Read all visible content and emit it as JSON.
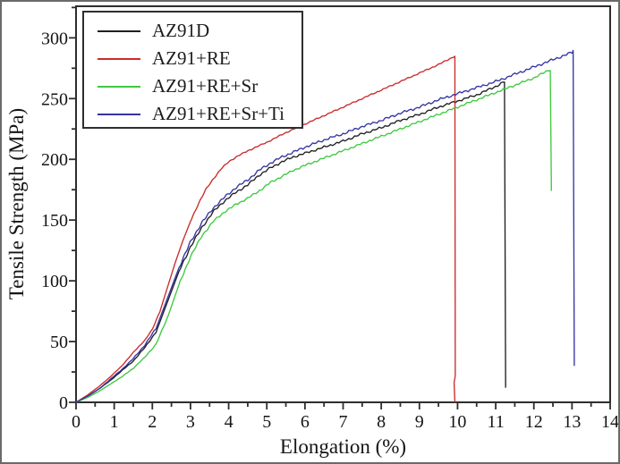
{
  "chart_data": {
    "type": "line",
    "title": "",
    "xlabel": "Elongation (%)",
    "ylabel": "Tensile Strength (MPa)",
    "xlim": [
      0,
      14
    ],
    "ylim": [
      0,
      326
    ],
    "x_ticks": [
      0,
      1,
      2,
      3,
      4,
      5,
      6,
      7,
      8,
      9,
      10,
      11,
      12,
      13,
      14
    ],
    "y_ticks": [
      0,
      50,
      100,
      150,
      200,
      250,
      300
    ],
    "x_minor_step": 0.5,
    "y_minor_step": 25,
    "grid": false,
    "legend_position": "top-left",
    "axis_color": "#2e2e2e",
    "series": [
      {
        "name": "AZ91D",
        "color": "#1f1f1f",
        "jitter": 1.0,
        "points": [
          [
            0,
            0
          ],
          [
            0.3,
            5
          ],
          [
            0.6,
            11
          ],
          [
            0.9,
            18
          ],
          [
            1.2,
            26
          ],
          [
            1.5,
            34
          ],
          [
            1.8,
            45
          ],
          [
            2.1,
            58
          ],
          [
            2.4,
            83
          ],
          [
            2.7,
            108
          ],
          [
            3.0,
            128
          ],
          [
            3.3,
            144
          ],
          [
            3.6,
            157
          ],
          [
            3.9,
            166
          ],
          [
            4.2,
            173
          ],
          [
            4.5,
            179
          ],
          [
            4.8,
            187
          ],
          [
            5.1,
            193
          ],
          [
            5.4,
            198
          ],
          [
            5.7,
            202
          ],
          [
            6.0,
            205
          ],
          [
            6.5,
            210
          ],
          [
            7.0,
            215
          ],
          [
            7.5,
            221
          ],
          [
            8.0,
            226
          ],
          [
            8.5,
            232
          ],
          [
            9.0,
            237
          ],
          [
            9.5,
            243
          ],
          [
            10.0,
            248
          ],
          [
            10.5,
            253
          ],
          [
            11.0,
            260
          ],
          [
            11.23,
            264
          ],
          [
            11.26,
            12
          ]
        ]
      },
      {
        "name": "AZ91+RE",
        "color": "#cb2b2b",
        "jitter": 0.55,
        "points": [
          [
            0,
            0
          ],
          [
            0.3,
            6
          ],
          [
            0.6,
            13
          ],
          [
            0.9,
            21
          ],
          [
            1.2,
            30
          ],
          [
            1.5,
            41
          ],
          [
            1.8,
            51
          ],
          [
            2.0,
            60
          ],
          [
            2.2,
            75
          ],
          [
            2.4,
            95
          ],
          [
            2.6,
            115
          ],
          [
            2.8,
            133
          ],
          [
            3.0,
            149
          ],
          [
            3.2,
            163
          ],
          [
            3.4,
            175
          ],
          [
            3.6,
            184
          ],
          [
            3.8,
            192
          ],
          [
            4.0,
            198
          ],
          [
            4.2,
            202
          ],
          [
            4.5,
            207
          ],
          [
            5.0,
            214
          ],
          [
            5.5,
            222
          ],
          [
            6.0,
            229
          ],
          [
            6.5,
            236
          ],
          [
            7.0,
            243
          ],
          [
            7.5,
            250
          ],
          [
            8.0,
            257
          ],
          [
            8.5,
            264
          ],
          [
            9.0,
            271
          ],
          [
            9.5,
            278
          ],
          [
            9.93,
            285
          ],
          [
            9.94,
            22
          ],
          [
            9.91,
            16
          ],
          [
            9.93,
            0
          ]
        ]
      },
      {
        "name": "AZ91+RE+Sr",
        "color": "#3fc93f",
        "jitter": 0.9,
        "points": [
          [
            0,
            0
          ],
          [
            0.3,
            4
          ],
          [
            0.6,
            9
          ],
          [
            0.9,
            15
          ],
          [
            1.2,
            21
          ],
          [
            1.5,
            28
          ],
          [
            1.8,
            37
          ],
          [
            2.1,
            48
          ],
          [
            2.4,
            70
          ],
          [
            2.7,
            97
          ],
          [
            3.0,
            120
          ],
          [
            3.3,
            137
          ],
          [
            3.6,
            149
          ],
          [
            3.9,
            157
          ],
          [
            4.2,
            163
          ],
          [
            4.5,
            168
          ],
          [
            4.8,
            174
          ],
          [
            5.1,
            181
          ],
          [
            5.4,
            186
          ],
          [
            5.7,
            191
          ],
          [
            6.0,
            195
          ],
          [
            6.5,
            201
          ],
          [
            7.0,
            207
          ],
          [
            7.5,
            213
          ],
          [
            8.0,
            219
          ],
          [
            8.5,
            225
          ],
          [
            9.0,
            231
          ],
          [
            9.5,
            237
          ],
          [
            10.0,
            243
          ],
          [
            10.5,
            249
          ],
          [
            11.0,
            255
          ],
          [
            11.5,
            261
          ],
          [
            12.0,
            267
          ],
          [
            12.43,
            274
          ],
          [
            12.46,
            174
          ]
        ]
      },
      {
        "name": "AZ91+RE+Sr+Ti",
        "color": "#3434a4",
        "jitter": 1.1,
        "points": [
          [
            0,
            0
          ],
          [
            0.3,
            5
          ],
          [
            0.6,
            11
          ],
          [
            0.9,
            19
          ],
          [
            1.2,
            27
          ],
          [
            1.5,
            36
          ],
          [
            1.8,
            47
          ],
          [
            2.1,
            61
          ],
          [
            2.4,
            86
          ],
          [
            2.7,
            111
          ],
          [
            3.0,
            132
          ],
          [
            3.3,
            148
          ],
          [
            3.6,
            160
          ],
          [
            3.9,
            169
          ],
          [
            4.2,
            177
          ],
          [
            4.5,
            183
          ],
          [
            4.8,
            191
          ],
          [
            5.1,
            197
          ],
          [
            5.4,
            202
          ],
          [
            5.7,
            206
          ],
          [
            6.0,
            210
          ],
          [
            6.5,
            216
          ],
          [
            7.0,
            221
          ],
          [
            7.5,
            227
          ],
          [
            8.0,
            232
          ],
          [
            8.5,
            238
          ],
          [
            9.0,
            243
          ],
          [
            9.5,
            249
          ],
          [
            10.0,
            254
          ],
          [
            10.5,
            259
          ],
          [
            11.0,
            264
          ],
          [
            11.5,
            270
          ],
          [
            12.0,
            276
          ],
          [
            12.5,
            282
          ],
          [
            13.0,
            288
          ],
          [
            13.03,
            290
          ],
          [
            13.06,
            30
          ]
        ]
      }
    ]
  }
}
